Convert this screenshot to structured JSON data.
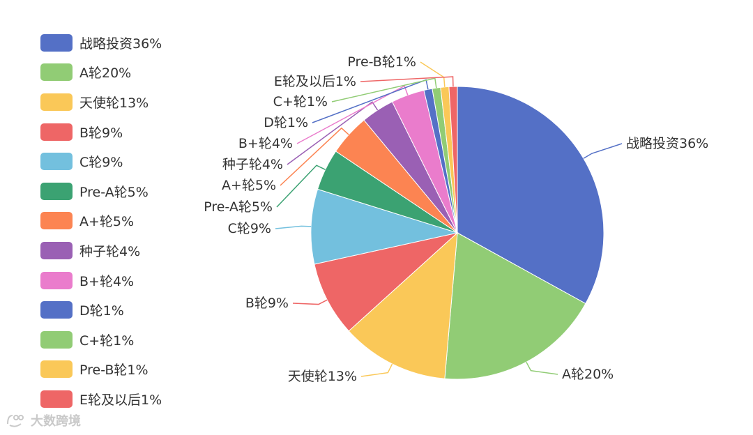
{
  "chart_data": {
    "type": "pie",
    "categories": [
      "战略投资",
      "A轮",
      "天使轮",
      "B轮",
      "C轮",
      "Pre-A轮",
      "A+轮",
      "种子轮",
      "B+轮",
      "D轮",
      "C+轮",
      "Pre-B轮",
      "E轮及以后"
    ],
    "values": [
      36,
      20,
      13,
      9,
      9,
      5,
      5,
      4,
      4,
      1,
      1,
      1,
      1
    ],
    "labels": [
      "战略投资36%",
      "A轮20%",
      "天使轮13%",
      "B轮9%",
      "C轮9%",
      "Pre-A轮5%",
      "A+轮5%",
      "种子轮4%",
      "B+轮4%",
      "D轮1%",
      "C+轮1%",
      "Pre-B轮1%",
      "E轮及以后1%"
    ],
    "colors": [
      "#5470c6",
      "#91cc75",
      "#fac858",
      "#ee6666",
      "#73c0de",
      "#3ba272",
      "#fc8452",
      "#9a60b4",
      "#ea7ccc",
      "#5470c6",
      "#91cc75",
      "#fac858",
      "#ee6666"
    ],
    "legend_position": "left",
    "start_angle": "top, clockwise"
  },
  "watermark": {
    "text": "大数跨境"
  }
}
